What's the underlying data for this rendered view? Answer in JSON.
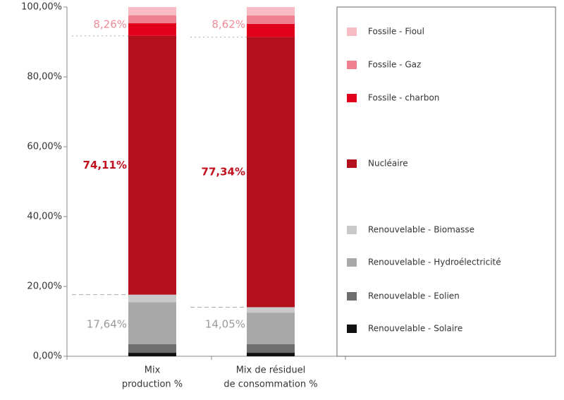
{
  "chart_data": {
    "type": "stacked_bar",
    "categories": [
      [
        "Mix",
        "production %"
      ],
      [
        "Mix de résiduel",
        "de consommation %"
      ]
    ],
    "series": [
      {
        "name": "Renouvelable - Solaire",
        "color": "#111111",
        "values": [
          1.0,
          1.0
        ]
      },
      {
        "name": "Renouvelable - Eolien",
        "color": "#6e6e6e",
        "values": [
          2.5,
          2.5
        ]
      },
      {
        "name": "Renouvelable - Hydroélectricité",
        "color": "#a9a9a9",
        "values": [
          12.0,
          9.0
        ]
      },
      {
        "name": "Renouvelable - Biomasse",
        "color": "#c9c9c9",
        "values": [
          2.14,
          1.55
        ]
      },
      {
        "name": "Nucléaire",
        "color": "#b3101d",
        "values": [
          74.11,
          77.34
        ]
      },
      {
        "name": "Fossile - charbon",
        "color": "#e0001b",
        "values": [
          3.6,
          3.8
        ]
      },
      {
        "name": "Fossile - Gaz",
        "color": "#f0808f",
        "values": [
          2.3,
          2.4
        ]
      },
      {
        "name": "Fossile - Fioul",
        "color": "#f7bcc4",
        "values": [
          2.36,
          2.42
        ]
      }
    ],
    "annotations": [
      {
        "color": "#999999",
        "values": [
          17.64,
          14.05
        ],
        "value_labels": [
          "17,64%",
          "14,05%"
        ]
      },
      {
        "color": "#c0101d",
        "values": [
          74.11,
          77.34
        ],
        "value_labels": [
          "74,11%",
          "77,34%"
        ]
      },
      {
        "color": "#f08a98",
        "values": [
          8.26,
          8.62
        ],
        "value_labels": [
          "8,26%",
          "8,62%"
        ]
      }
    ],
    "ylim": [
      0,
      100
    ],
    "yticks": [
      {
        "value": 0,
        "label": "0,00%"
      },
      {
        "value": 20,
        "label": "20,00%"
      },
      {
        "value": 40,
        "label": "40,00%"
      },
      {
        "value": 60,
        "label": "60,00%"
      },
      {
        "value": 80,
        "label": "80,00%"
      },
      {
        "value": 100,
        "label": "100,00%"
      }
    ],
    "legend": "right"
  }
}
